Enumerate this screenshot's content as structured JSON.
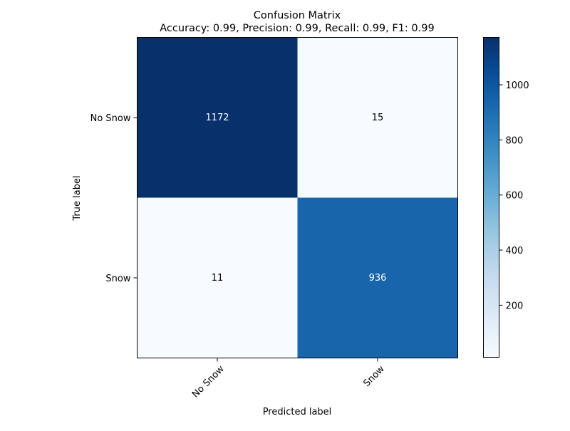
{
  "chart_data": {
    "type": "heatmap",
    "title": "Confusion Matrix",
    "subtitle": "Accuracy: 0.99, Precision: 0.99, Recall: 0.99, F1: 0.99",
    "xlabel": "Predicted label",
    "ylabel": "True label",
    "x_categories": [
      "No Snow",
      "Snow"
    ],
    "y_categories": [
      "No Snow",
      "Snow"
    ],
    "values": [
      [
        1172,
        15
      ],
      [
        11,
        936
      ]
    ],
    "colormap": "Blues",
    "color_range": [
      11,
      1172
    ],
    "colorbar_ticks": [
      200,
      400,
      600,
      800,
      1000
    ],
    "cell_text_colors": [
      [
        "#ffffff",
        "#000000"
      ],
      [
        "#000000",
        "#ffffff"
      ]
    ],
    "grid": false
  }
}
